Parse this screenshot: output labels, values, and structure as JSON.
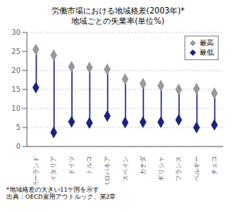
{
  "chart_data": {
    "type": "dumbbell",
    "title": "労働市場における地域格差(2003年)*",
    "subtitle": "地域ごとの失業率(単位%)",
    "categories": [
      "ポーランド",
      "イタリア",
      "ドイツ",
      "トルコ",
      "スロバキア",
      "スペイン",
      "カナダ",
      "ギリシャ",
      "フランス",
      "ベルギー",
      "チェコ"
    ],
    "series": [
      {
        "name": "最高",
        "color": "#999999",
        "marker": "diamond",
        "values": [
          25.5,
          24.0,
          21.0,
          20.8,
          20.3,
          17.7,
          16.5,
          16.0,
          15.0,
          15.2,
          14.0
        ]
      },
      {
        "name": "最低",
        "color": "#1a237e",
        "marker": "diamond",
        "values": [
          15.5,
          3.7,
          6.5,
          6.2,
          8.0,
          6.3,
          6.4,
          6.4,
          7.0,
          5.0,
          5.7
        ]
      }
    ],
    "color": "#1a237e",
    "ylim": [
      0,
      30
    ],
    "yticks": [
      0,
      5,
      10,
      15,
      20,
      25,
      30
    ],
    "grid": true,
    "legend": "upper right",
    "annotations": [
      "*地域格差の大きい11ケ国を示す",
      "出典：OECD雇用アウトルック、第2章"
    ]
  }
}
